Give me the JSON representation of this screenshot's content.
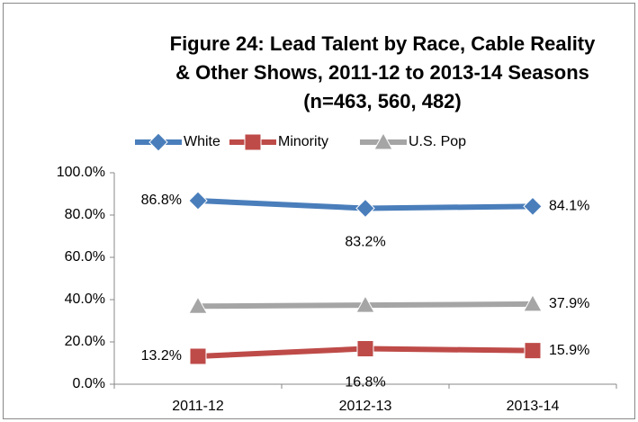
{
  "chart_data": {
    "type": "line",
    "title": [
      "Figure 24:  Lead Talent by Race, Cable Reality",
      "& Other Shows, 2011-12 to 2013-14 Seasons",
      "(n=463, 560, 482)"
    ],
    "categories": [
      "2011-12",
      "2012-13",
      "2013-14"
    ],
    "series": [
      {
        "name": "White",
        "color": "#4a7ebb",
        "marker": "diamond",
        "values": [
          86.8,
          83.2,
          84.1
        ],
        "value_labels": [
          "86.8%",
          "83.2%",
          "84.1%"
        ]
      },
      {
        "name": "Minority",
        "color": "#be4b48",
        "marker": "square",
        "values": [
          13.2,
          16.8,
          15.9
        ],
        "value_labels": [
          "13.2%",
          "16.8%",
          "15.9%"
        ]
      },
      {
        "name": "U.S. Pop",
        "color": "#a5a5a5",
        "marker": "triangle",
        "values": [
          36.9,
          37.4,
          37.9
        ],
        "value_labels": [
          null,
          null,
          "37.9%"
        ]
      }
    ],
    "ylim": [
      0,
      100
    ],
    "yticks": [
      {
        "value": 0,
        "label": "0.0%"
      },
      {
        "value": 20,
        "label": "20.0%"
      },
      {
        "value": 40,
        "label": "40.0%"
      },
      {
        "value": 60,
        "label": "60.0%"
      },
      {
        "value": 80,
        "label": "80.0%"
      },
      {
        "value": 100,
        "label": "100.0%"
      }
    ],
    "grid": false,
    "legend": "top"
  }
}
